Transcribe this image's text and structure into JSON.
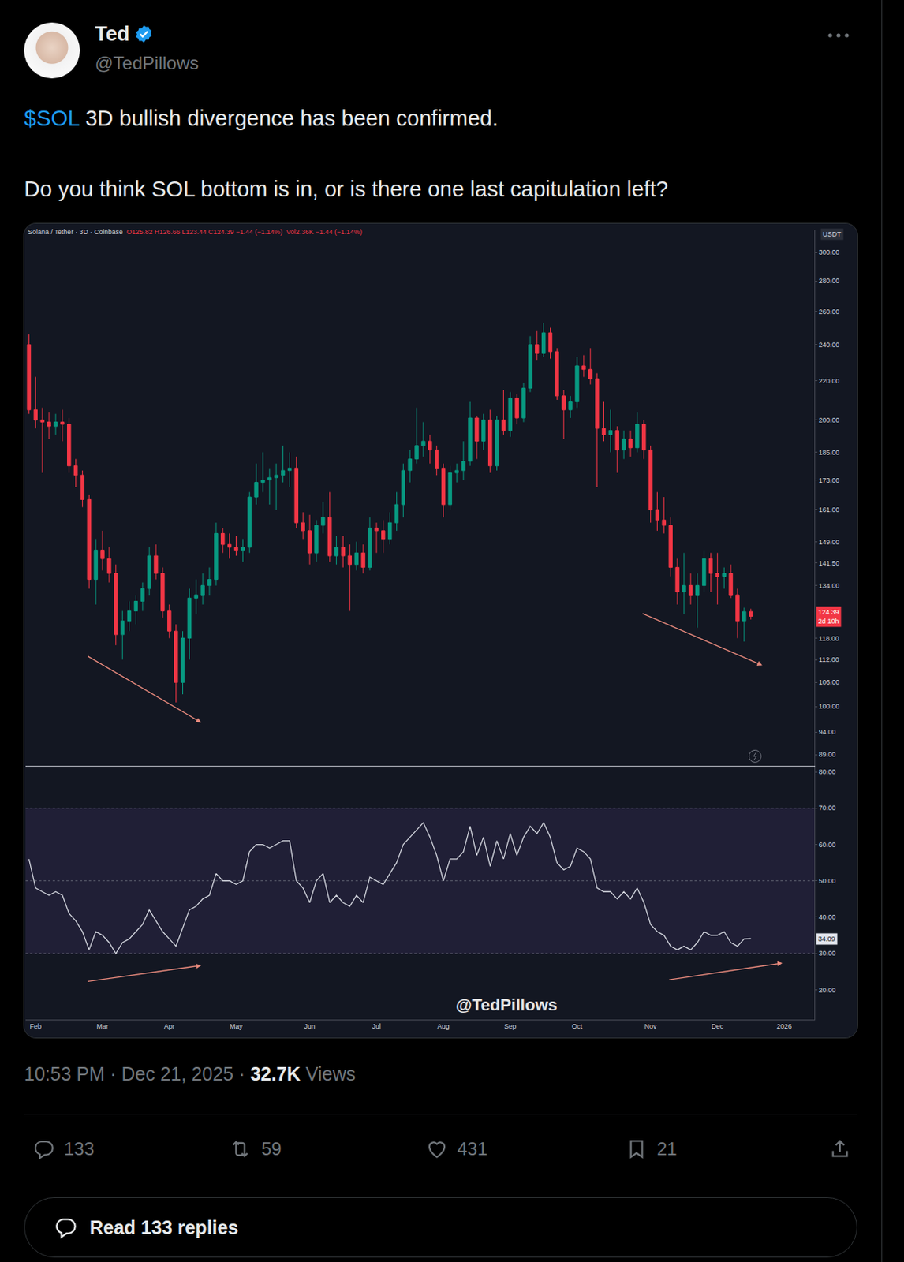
{
  "post": {
    "name": "Ted",
    "handle": "@TedPillows",
    "cashtag": "$SOL",
    "line1": "3D bullish divergence has been confirmed.",
    "line2": "Do you think SOL bottom is in, or is there one last capitulation left?",
    "timestamp": "10:53 PM · Dec 21, 2025 · ",
    "views": "32.7K",
    "views_label": "Views",
    "actions": {
      "replies": "133",
      "reposts": "59",
      "likes": "431",
      "bookmarks": "21"
    },
    "read_replies": "Read 133 replies"
  },
  "chart_data": [
    {
      "type": "candlestick",
      "header": {
        "symbol": "Solana / Tether · 3D · Coinbase",
        "ohlc_text": "O125.82 H126.66 L123.44 C124.39 −1.44 (−1.14%)",
        "volume_text": "Vol2.36K −1.44 (−1.14%)"
      },
      "axis_unit": "USDT",
      "categories": [
        null,
        "Feb",
        null,
        null,
        null,
        null,
        null,
        null,
        null,
        null,
        null,
        "Mar",
        null,
        null,
        null,
        null,
        null,
        null,
        null,
        null,
        null,
        "Apr",
        null,
        null,
        null,
        null,
        null,
        null,
        null,
        null,
        null,
        "May",
        null,
        null,
        null,
        null,
        null,
        null,
        null,
        null,
        null,
        null,
        "Jun",
        null,
        null,
        null,
        null,
        null,
        null,
        null,
        null,
        null,
        "Jul",
        null,
        null,
        null,
        null,
        null,
        null,
        null,
        null,
        null,
        "Aug",
        null,
        null,
        null,
        null,
        null,
        null,
        null,
        null,
        null,
        "Sep",
        null,
        null,
        null,
        null,
        null,
        null,
        null,
        null,
        null,
        "Oct",
        null,
        null,
        null,
        null,
        null,
        null,
        null,
        null,
        null,
        null,
        "Nov",
        null,
        null,
        null,
        null,
        null,
        null,
        null,
        null,
        null,
        "Dec",
        null,
        null,
        null,
        null,
        null,
        null,
        null,
        null,
        null,
        "2026",
        null,
        null,
        null,
        null
      ],
      "open": [
        240,
        205,
        200,
        199,
        197,
        199,
        198,
        179,
        175,
        165,
        136,
        146,
        143,
        138,
        119,
        123,
        126,
        129,
        133,
        144,
        138,
        126,
        120,
        106,
        118,
        130,
        131,
        134,
        136,
        152,
        148,
        147,
        146,
        147,
        166,
        172,
        173,
        174,
        175,
        177,
        178,
        156,
        153,
        145,
        155,
        158,
        144,
        147,
        144,
        141,
        145,
        140,
        154,
        153,
        150,
        156,
        163,
        177,
        182,
        188,
        190,
        186,
        178,
        163,
        176,
        177,
        181,
        201,
        190,
        200,
        179,
        200,
        195,
        211,
        201,
        216,
        240,
        235,
        247,
        236,
        212,
        205,
        209,
        228,
        226,
        221,
        196,
        193,
        195,
        186,
        191,
        187,
        198,
        186,
        161,
        157,
        155,
        140,
        132,
        134,
        131,
        134,
        143,
        138,
        137,
        138,
        131,
        123,
        125.82,
        null,
        null,
        null,
        null,
        null,
        null,
        null,
        null,
        null
      ],
      "high": [
        246,
        222,
        206,
        204,
        203,
        205,
        201,
        182,
        177,
        167,
        150,
        153,
        147,
        141,
        126,
        129,
        131,
        135,
        147,
        148,
        140,
        128,
        122,
        120,
        133,
        136,
        138,
        140,
        156,
        154,
        152,
        151,
        150,
        168,
        180,
        185,
        178,
        180,
        188,
        185,
        183,
        160,
        159,
        157,
        164,
        168,
        151,
        151,
        148,
        149,
        148,
        158,
        156,
        157,
        160,
        168,
        180,
        186,
        206,
        199,
        193,
        188,
        180,
        179,
        180,
        190,
        209,
        202,
        203,
        205,
        202,
        215,
        214,
        213,
        219,
        245,
        248,
        253,
        250,
        238,
        215,
        212,
        233,
        234,
        238,
        224,
        209,
        205,
        197,
        195,
        195,
        204,
        200,
        188,
        168,
        166,
        158,
        143,
        145,
        138,
        138,
        146,
        145,
        145,
        140,
        141,
        133,
        127,
        126.66,
        null,
        null,
        null,
        null,
        null,
        null,
        null,
        null,
        null
      ],
      "low": [
        203,
        196,
        176,
        191,
        193,
        190,
        176,
        170,
        162,
        133,
        128,
        139,
        135,
        116,
        112,
        120,
        122,
        126,
        131,
        136,
        124,
        118,
        101,
        103,
        112,
        125,
        128,
        131,
        134,
        145,
        143,
        144,
        142,
        145,
        163,
        168,
        163,
        161,
        172,
        170,
        154,
        150,
        141,
        142,
        152,
        142,
        141,
        140,
        126,
        139,
        138,
        139,
        145,
        145,
        148,
        153,
        158,
        172,
        180,
        183,
        180,
        175,
        158,
        161,
        172,
        173,
        179,
        182,
        186,
        176,
        177,
        193,
        192,
        198,
        199,
        214,
        231,
        233,
        232,
        210,
        191,
        201,
        206,
        222,
        218,
        170,
        190,
        185,
        176,
        182,
        183,
        185,
        182,
        156,
        153,
        152,
        137,
        128,
        125,
        128,
        121,
        132,
        132,
        128,
        133,
        130,
        118,
        117,
        123.44,
        null,
        null,
        null,
        null,
        null,
        null,
        null,
        null,
        null
      ],
      "close": [
        205,
        200,
        199,
        197,
        199,
        198,
        179,
        175,
        165,
        136,
        146,
        143,
        138,
        119,
        123,
        126,
        129,
        133,
        144,
        138,
        126,
        120,
        106,
        118,
        130,
        131,
        134,
        136,
        152,
        148,
        147,
        146,
        147,
        166,
        172,
        173,
        174,
        175,
        177,
        178,
        156,
        153,
        145,
        155,
        158,
        144,
        147,
        144,
        141,
        145,
        140,
        154,
        153,
        150,
        156,
        163,
        177,
        182,
        188,
        190,
        186,
        178,
        163,
        176,
        177,
        181,
        201,
        190,
        200,
        179,
        200,
        195,
        211,
        201,
        216,
        240,
        235,
        247,
        236,
        212,
        205,
        209,
        228,
        226,
        221,
        196,
        193,
        195,
        186,
        191,
        187,
        198,
        186,
        161,
        157,
        155,
        140,
        132,
        134,
        131,
        134,
        143,
        138,
        137,
        138,
        131,
        123,
        125.82,
        124.39,
        null,
        null,
        null,
        null,
        null,
        null,
        null,
        null,
        null
      ],
      "color": {
        "up": "#089981",
        "down": "#f23645"
      },
      "log": "y",
      "ylim": [
        86.6,
        317
      ],
      "yticks": [
        {
          "value": 300,
          "label": "300.00"
        },
        {
          "value": 280,
          "label": "280.00"
        },
        {
          "value": 260,
          "label": "260.00"
        },
        {
          "value": 240,
          "label": "240.00"
        },
        {
          "value": 220,
          "label": "220.00"
        },
        {
          "value": 200,
          "label": "200.00"
        },
        {
          "value": 185,
          "label": "185.00"
        },
        {
          "value": 173,
          "label": "173.00"
        },
        {
          "value": 161,
          "label": "161.00"
        },
        {
          "value": 149,
          "label": "149.00"
        },
        {
          "value": 141.5,
          "label": "141.50"
        },
        {
          "value": 134,
          "label": "134.00"
        },
        {
          "value": 118,
          "label": "118.00"
        },
        {
          "value": 112,
          "label": "112.00"
        },
        {
          "value": 106,
          "label": "106.00"
        },
        {
          "value": 100,
          "label": "100.00"
        },
        {
          "value": 94,
          "label": "94.00"
        },
        {
          "value": 89,
          "label": "89.00"
        }
      ],
      "last_price": {
        "value": 124.39,
        "label": "124.39",
        "countdown": "2d 10h"
      },
      "grid": false,
      "tick_labels": "y"
    },
    {
      "type": "line",
      "categories": [
        null,
        "Feb",
        null,
        null,
        null,
        null,
        null,
        null,
        null,
        null,
        null,
        "Mar",
        null,
        null,
        null,
        null,
        null,
        null,
        null,
        null,
        null,
        "Apr",
        null,
        null,
        null,
        null,
        null,
        null,
        null,
        null,
        null,
        "May",
        null,
        null,
        null,
        null,
        null,
        null,
        null,
        null,
        null,
        null,
        "Jun",
        null,
        null,
        null,
        null,
        null,
        null,
        null,
        null,
        null,
        "Jul",
        null,
        null,
        null,
        null,
        null,
        null,
        null,
        null,
        null,
        "Aug",
        null,
        null,
        null,
        null,
        null,
        null,
        null,
        null,
        null,
        "Sep",
        null,
        null,
        null,
        null,
        null,
        null,
        null,
        null,
        null,
        "Oct",
        null,
        null,
        null,
        null,
        null,
        null,
        null,
        null,
        null,
        null,
        "Nov",
        null,
        null,
        null,
        null,
        null,
        null,
        null,
        null,
        null,
        "Dec",
        null,
        null,
        null,
        null,
        null,
        null,
        null,
        null,
        null,
        "2026",
        null,
        null,
        null,
        null
      ],
      "values": [
        56,
        48,
        47,
        46,
        47,
        46,
        41,
        39,
        36,
        31,
        36,
        35,
        33,
        30,
        33,
        34,
        36,
        38,
        42,
        39,
        36,
        34,
        32,
        37,
        42,
        43,
        45,
        46,
        52,
        50,
        50,
        49,
        50,
        58,
        60,
        60,
        59,
        60,
        61,
        61,
        50,
        48,
        44,
        50,
        52,
        44,
        46,
        44,
        43,
        46,
        44,
        51,
        50,
        49,
        52,
        55,
        60,
        62,
        64,
        66,
        62,
        57,
        50,
        56,
        56,
        58,
        65,
        57,
        62,
        54,
        61,
        56,
        63,
        57,
        62,
        65,
        63,
        66,
        62,
        55,
        53,
        54,
        59,
        58,
        56,
        48,
        47,
        47,
        45,
        47,
        45,
        48,
        44,
        38,
        36,
        35,
        32,
        31,
        32,
        31,
        33,
        36,
        35,
        35,
        36,
        33,
        32,
        34,
        34.09,
        null,
        null,
        null,
        null,
        null,
        null,
        null,
        null,
        null
      ],
      "color": "#d1d4dc",
      "ylim": [
        11.8,
        81.4
      ],
      "yticks": [
        {
          "value": 80,
          "label": "80.00"
        },
        {
          "value": 70,
          "label": "70.00"
        },
        {
          "value": 60,
          "label": "60.00"
        },
        {
          "value": 50,
          "label": "50.00"
        },
        {
          "value": 40,
          "label": "40.00"
        },
        {
          "value": 30,
          "label": "30.00"
        },
        {
          "value": 20,
          "label": "20.00"
        }
      ],
      "band": [
        30,
        70
      ],
      "levels": [
        70,
        50,
        30
      ],
      "last_value": {
        "value": 34.09,
        "label": "34.09"
      },
      "watermark": "@TedPillows",
      "grid": false
    }
  ]
}
